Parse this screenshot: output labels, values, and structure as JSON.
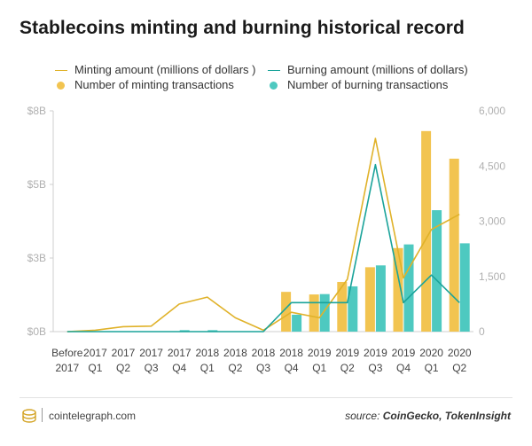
{
  "title": "Stablecoins minting and burning historical record",
  "legend": {
    "minting_amount": "Minting amount (millions of dollars )",
    "burning_amount": "Burning amount (millions of dollars)",
    "minting_tx": "Number of minting transactions",
    "burning_tx": "Number of burning transactions"
  },
  "footer": {
    "brand": "cointelegraph.com",
    "source_prefix": "source:",
    "source_name": "CoinGecko, TokenInsight"
  },
  "colors": {
    "minting": "#f2c450",
    "burning": "#4ec9c0",
    "minting_line": "#e0b22a",
    "burning_line": "#1aa39a",
    "axis_text": "#b0b0b0"
  },
  "chart_data": {
    "type": "bar",
    "categories": [
      [
        "Before",
        "2017"
      ],
      [
        "2017",
        "Q1"
      ],
      [
        "2017",
        "Q2"
      ],
      [
        "2017",
        "Q3"
      ],
      [
        "2017",
        "Q4"
      ],
      [
        "2018",
        "Q1"
      ],
      [
        "2018",
        "Q2"
      ],
      [
        "2018",
        "Q3"
      ],
      [
        "2018",
        "Q4"
      ],
      [
        "2019",
        "Q1"
      ],
      [
        "2019",
        "Q2"
      ],
      [
        "2019",
        "Q3"
      ],
      [
        "2019",
        "Q4"
      ],
      [
        "2020",
        "Q1"
      ],
      [
        "2020",
        "Q2"
      ]
    ],
    "left_axis": {
      "ticks": [
        "$0B",
        "$3B",
        "$5B",
        "$8B"
      ],
      "ylim": [
        0,
        8000
      ]
    },
    "right_axis": {
      "ticks": [
        "0",
        "1,500",
        "3,000",
        "4,500",
        "6,000"
      ],
      "ylim": [
        0,
        6000
      ]
    },
    "series": [
      {
        "name": "Minting amount (millions of dollars )",
        "kind": "line",
        "axis": "left",
        "values": [
          0,
          50,
          180,
          200,
          1000,
          1250,
          500,
          50,
          700,
          500,
          1900,
          7000,
          1950,
          3700,
          4250
        ]
      },
      {
        "name": "Burning amount (millions of dollars)",
        "kind": "line",
        "axis": "left",
        "values": [
          0,
          0,
          0,
          0,
          0,
          0,
          0,
          0,
          1050,
          1050,
          1050,
          6050,
          1050,
          2050,
          1050
        ]
      },
      {
        "name": "Number of minting transactions",
        "kind": "bar",
        "axis": "right",
        "values": [
          0,
          0,
          0,
          0,
          0,
          0,
          0,
          0,
          1080,
          1010,
          1350,
          1750,
          2270,
          5450,
          4700
        ]
      },
      {
        "name": "Number of burning transactions",
        "kind": "bar",
        "axis": "right",
        "values": [
          0,
          0,
          0,
          0,
          40,
          40,
          0,
          0,
          460,
          1020,
          1230,
          1800,
          2370,
          3300,
          2400
        ]
      }
    ]
  }
}
